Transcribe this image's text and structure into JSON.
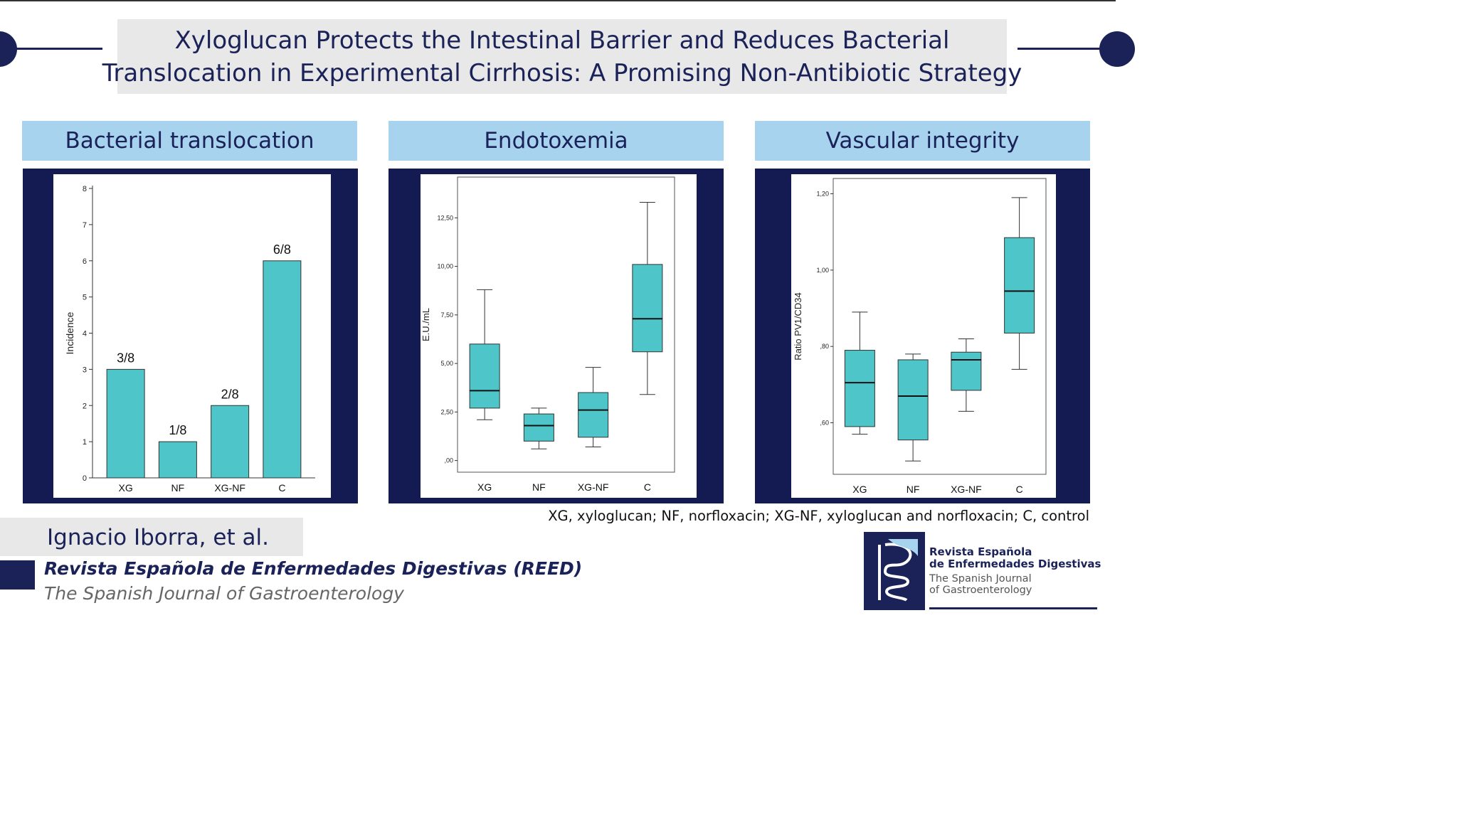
{
  "header": {
    "title_line1": "Xyloglucan Protects the Intestinal Barrier and Reduces Bacterial",
    "title_line2": "Translocation in Experimental Cirrhosis: A Promising Non-Antibiotic Strategy"
  },
  "panels": [
    {
      "heading": "Bacterial translocation"
    },
    {
      "heading": "Endotoxemia"
    },
    {
      "heading": "Vascular integrity"
    }
  ],
  "footnote": "XG, xyloglucan; NF, norfloxacin; XG-NF, xyloglucan and norfloxacin; C, control",
  "footer": {
    "authors": "Ignacio Iborra, et al.",
    "journal": "Revista Española de Enfermedades Digestivas (REED)",
    "journal_sub": "The Spanish Journal of Gastroenterology"
  },
  "logo": {
    "line1": "Revista Española",
    "line2": "de Enfermedades Digestivas",
    "line3": "The Spanish Journal",
    "line4": "of Gastroenterology"
  },
  "colors": {
    "navy": "#1a2258",
    "light_blue": "#a8d3ee",
    "teal": "#4dc5c9",
    "frame": "#141a52"
  },
  "chart_data": [
    {
      "type": "bar",
      "title": "Bacterial translocation",
      "categories": [
        "XG",
        "NF",
        "XG-NF",
        "C"
      ],
      "values": [
        3,
        1,
        2,
        6
      ],
      "data_labels": [
        "3/8",
        "1/8",
        "2/8",
        "6/8"
      ],
      "ylabel": "Incidence",
      "ylim": [
        0,
        8
      ],
      "yticks": [
        "0",
        "1",
        "2",
        "3",
        "4",
        "5",
        "6",
        "7",
        "8"
      ]
    },
    {
      "type": "box",
      "title": "Endotoxemia",
      "categories": [
        "XG",
        "NF",
        "XG-NF",
        "C"
      ],
      "boxes": [
        {
          "min": 2.1,
          "q1": 2.7,
          "median": 3.6,
          "q3": 6.0,
          "max": 8.8
        },
        {
          "min": 0.6,
          "q1": 1.0,
          "median": 1.8,
          "q3": 2.4,
          "max": 2.7
        },
        {
          "min": 0.7,
          "q1": 1.2,
          "median": 2.6,
          "q3": 3.5,
          "max": 4.8
        },
        {
          "min": 3.4,
          "q1": 5.6,
          "median": 7.3,
          "q3": 10.1,
          "max": 13.3
        }
      ],
      "ylabel": "E.U./mL",
      "ylim": [
        -0.6,
        14.6
      ],
      "yticks": [
        ",00",
        "2,50",
        "5,00",
        "7,50",
        "10,00",
        "12,50"
      ],
      "ytick_values": [
        0,
        2.5,
        5,
        7.5,
        10,
        12.5
      ]
    },
    {
      "type": "box",
      "title": "Vascular integrity",
      "categories": [
        "XG",
        "NF",
        "XG-NF",
        "C"
      ],
      "boxes": [
        {
          "min": 0.57,
          "q1": 0.59,
          "median": 0.705,
          "q3": 0.79,
          "max": 0.89
        },
        {
          "min": 0.5,
          "q1": 0.555,
          "median": 0.67,
          "q3": 0.765,
          "max": 0.78
        },
        {
          "min": 0.63,
          "q1": 0.685,
          "median": 0.765,
          "q3": 0.785,
          "max": 0.82
        },
        {
          "min": 0.74,
          "q1": 0.835,
          "median": 0.945,
          "q3": 1.085,
          "max": 1.19
        }
      ],
      "ylabel": "Ratio PV1/CD34",
      "ylim": [
        0.465,
        1.24
      ],
      "yticks": [
        ",60",
        ",80",
        "1,00",
        "1,20"
      ],
      "ytick_values": [
        0.6,
        0.8,
        1.0,
        1.2
      ]
    }
  ]
}
